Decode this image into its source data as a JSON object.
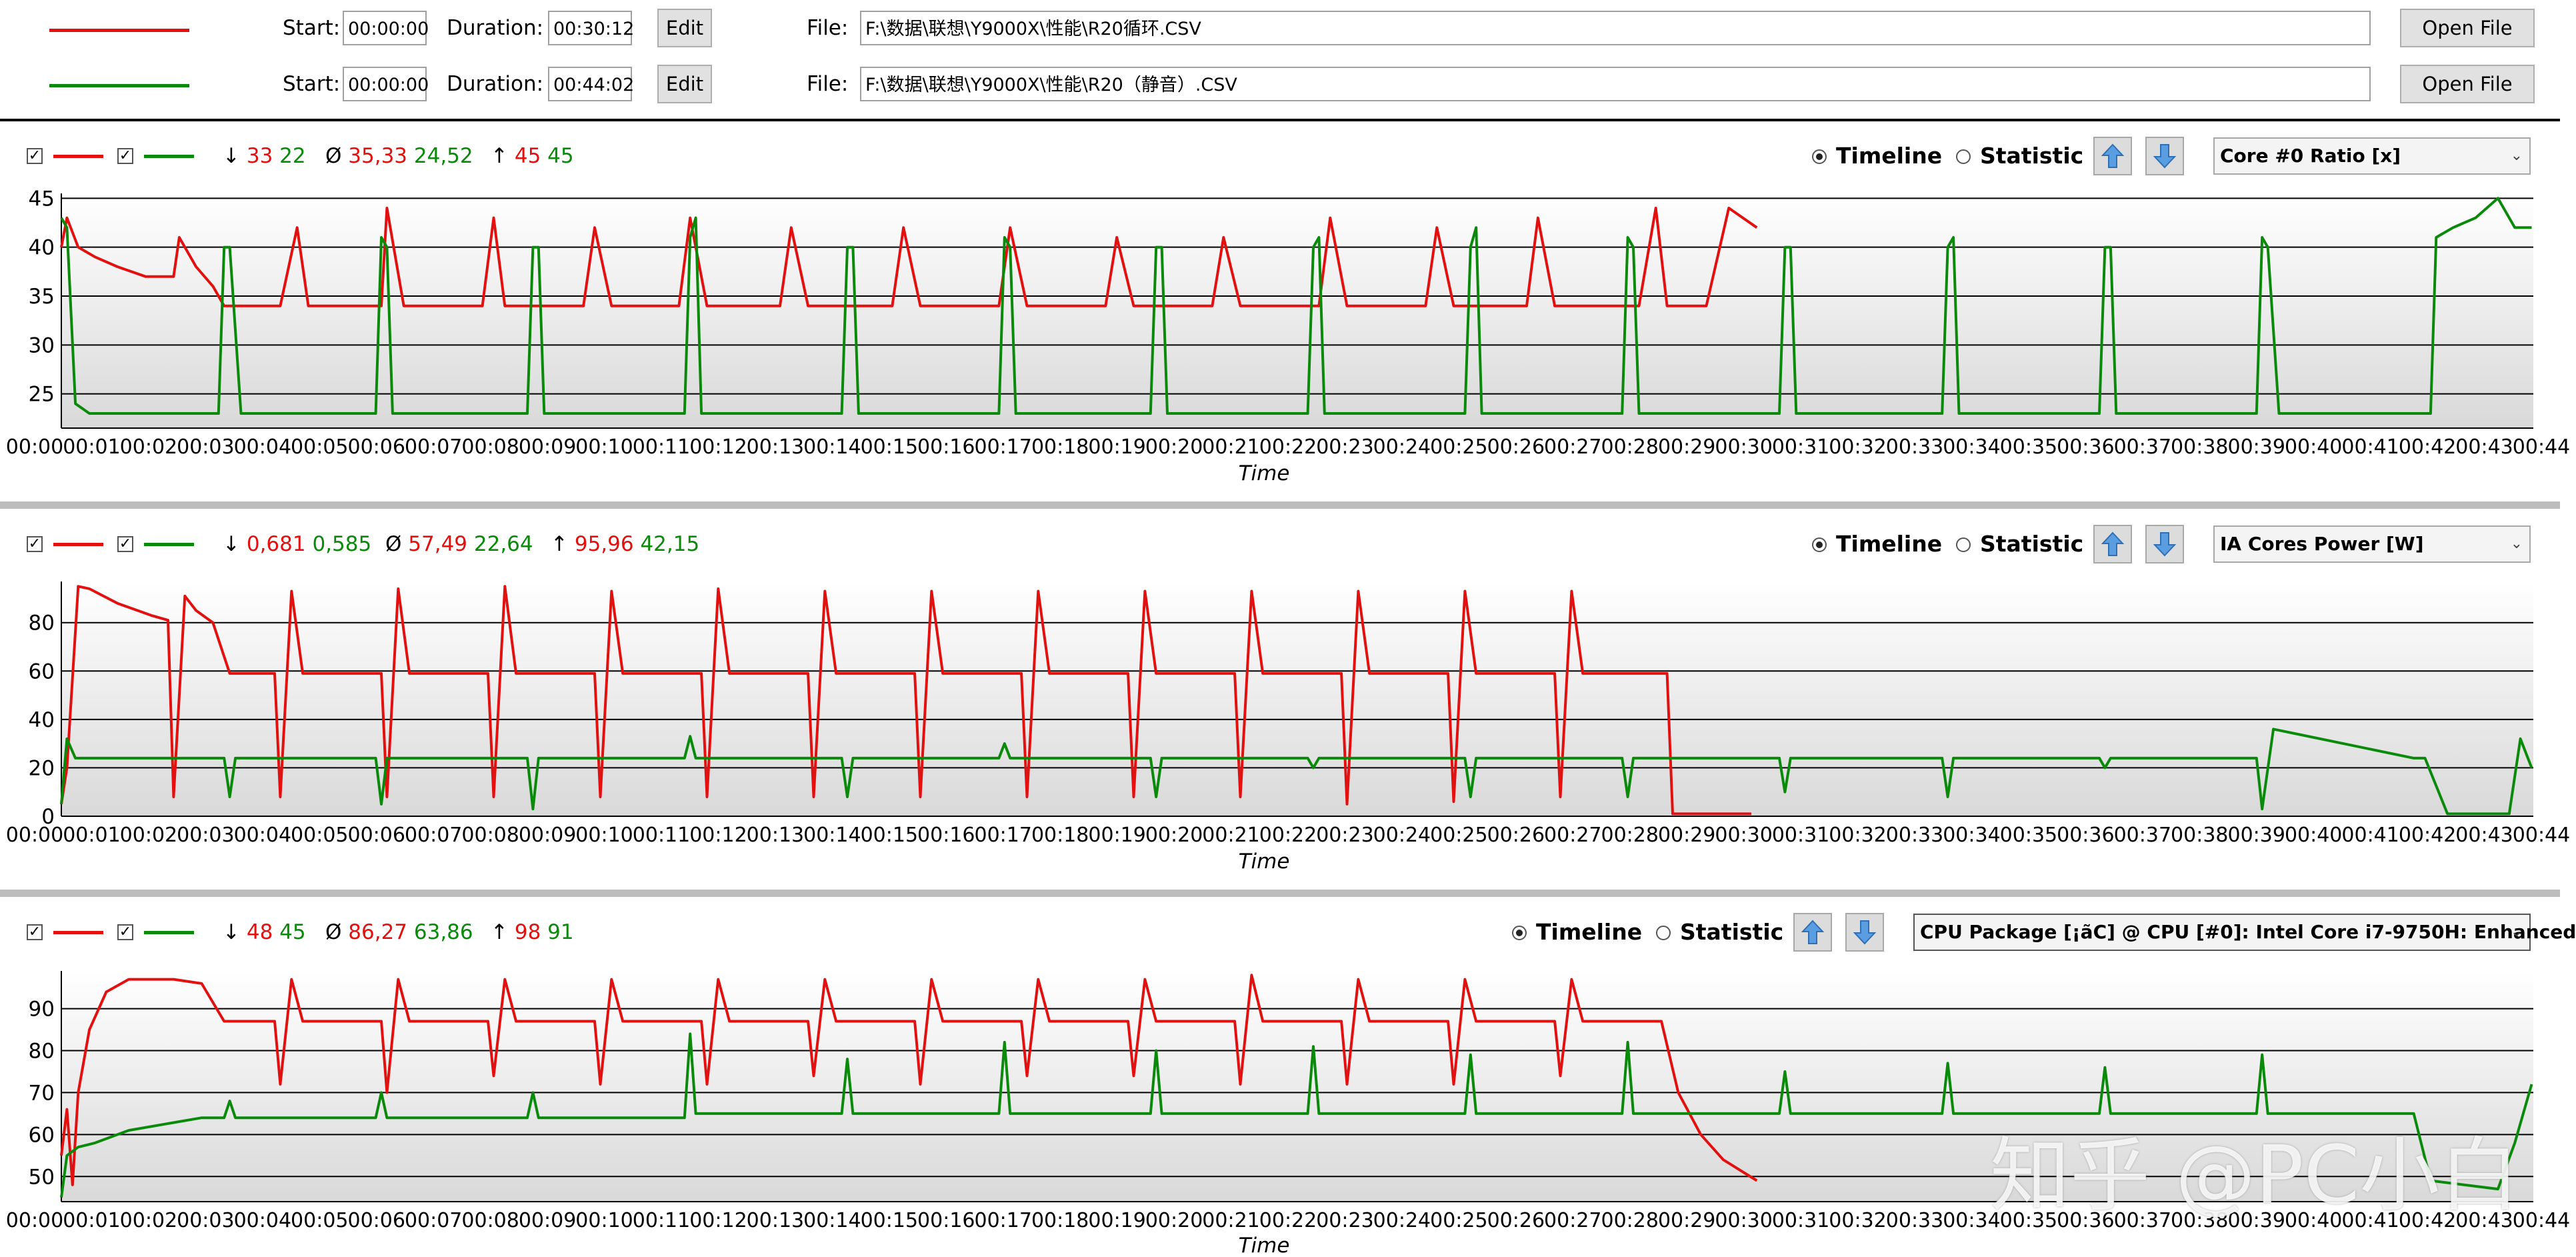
{
  "colors": {
    "series1": "#e31010",
    "series2": "#0a8a0a"
  },
  "files": [
    {
      "start_label": "Start:",
      "start": "00:00:00",
      "duration_label": "Duration:",
      "duration": "00:30:12",
      "edit_label": "Edit",
      "file_label": "File:",
      "path": "F:\\数据\\联想\\Y9000X\\性能\\R20循环.CSV",
      "open_label": "Open File"
    },
    {
      "start_label": "Start:",
      "start": "00:00:00",
      "duration_label": "Duration:",
      "duration": "00:44:02",
      "edit_label": "Edit",
      "file_label": "File:",
      "path": "F:\\数据\\联想\\Y9000X\\性能\\R20（静音）.CSV",
      "open_label": "Open File"
    }
  ],
  "mode_timeline": "Timeline",
  "mode_statistic": "Statistic",
  "x_time_label": "Time",
  "panels": [
    {
      "min_icon": "↓",
      "avg_icon": "Ø",
      "max_icon": "↑",
      "min": [
        "33",
        "22"
      ],
      "avg": [
        "35,33",
        "24,52"
      ],
      "max": [
        "45",
        "45"
      ],
      "sensor": "Core #0 Ratio [x]"
    },
    {
      "min_icon": "↓",
      "avg_icon": "Ø",
      "max_icon": "↑",
      "min": [
        "0,681",
        "0,585"
      ],
      "avg": [
        "57,49",
        "22,64"
      ],
      "max": [
        "95,96",
        "42,15"
      ],
      "sensor": "IA Cores Power [W]"
    },
    {
      "min_icon": "↓",
      "avg_icon": "Ø",
      "max_icon": "↑",
      "min": [
        "48",
        "45"
      ],
      "avg": [
        "86,27",
        "63,86"
      ],
      "max": [
        "98",
        "91"
      ],
      "sensor": "CPU Package [¡ãC] @ CPU [#0]: Intel Core i7-9750H: Enhanced"
    }
  ],
  "watermark": "知乎 @PC小白",
  "chart_data": [
    {
      "type": "line",
      "title": "Core #0 Ratio [x]",
      "xlabel": "Time",
      "ylabel": "",
      "x_ticks": [
        "00:00",
        "00:01",
        "00:02",
        "00:03",
        "00:04",
        "00:05",
        "00:06",
        "00:07",
        "00:08",
        "00:09",
        "00:10",
        "00:11",
        "00:12",
        "00:13",
        "00:14",
        "00:15",
        "00:16",
        "00:17",
        "00:18",
        "00:19",
        "00:20",
        "00:21",
        "00:22",
        "00:23",
        "00:24",
        "00:25",
        "00:26",
        "00:27",
        "00:28",
        "00:29",
        "00:30",
        "00:31",
        "00:32",
        "00:33",
        "00:34",
        "00:35",
        "00:36",
        "00:37",
        "00:38",
        "00:39",
        "00:40",
        "00:41",
        "00:42",
        "00:43",
        "00:44"
      ],
      "y_ticks": [
        25,
        30,
        35,
        40,
        45
      ],
      "ylim": [
        21.5,
        45.5
      ],
      "xlim_minutes": [
        0,
        44.03
      ],
      "grid": true,
      "series": [
        {
          "color": "red",
          "x": [
            0,
            0.1,
            0.3,
            0.6,
            1.0,
            1.5,
            2.0,
            2.1,
            2.4,
            2.7,
            2.9,
            3.5,
            3.9,
            4.2,
            4.4,
            5.4,
            5.7,
            5.8,
            6.1,
            7.1,
            7.5,
            7.7,
            7.9,
            8.7,
            9.3,
            9.5,
            9.8,
            10.6,
            11.0,
            11.2,
            11.5,
            12.4,
            12.8,
            13.0,
            13.3,
            14.3,
            14.8,
            15.0,
            15.3,
            16.3,
            16.7,
            16.9,
            17.2,
            18.2,
            18.6,
            18.8,
            19.1,
            20.1,
            20.5,
            20.7,
            21.0,
            22.0,
            22.4,
            22.6,
            22.9,
            23.9,
            24.3,
            24.5,
            24.8,
            25.8,
            26.1,
            26.3,
            26.6,
            27.6,
            28.1,
            28.4,
            28.6,
            29.0,
            29.3,
            29.7,
            30.2
          ],
          "y": [
            40,
            43,
            40,
            39,
            38,
            37,
            37,
            41,
            38,
            36,
            34,
            34,
            34,
            42,
            34,
            34,
            34,
            44,
            34,
            34,
            34,
            43,
            34,
            34,
            34,
            42,
            34,
            34,
            34,
            43,
            34,
            34,
            34,
            42,
            34,
            34,
            34,
            42,
            34,
            34,
            34,
            42,
            34,
            34,
            34,
            41,
            34,
            34,
            34,
            41,
            34,
            34,
            34,
            43,
            34,
            34,
            34,
            42,
            34,
            34,
            34,
            43,
            34,
            34,
            34,
            44,
            34,
            34,
            34,
            44,
            42
          ]
        },
        {
          "color": "green",
          "x": [
            0,
            0.1,
            0.25,
            0.5,
            2.8,
            2.9,
            3.0,
            3.2,
            5.6,
            5.7,
            5.8,
            5.9,
            8.3,
            8.4,
            8.5,
            8.6,
            11.1,
            11.2,
            11.3,
            11.4,
            13.9,
            14.0,
            14.1,
            14.2,
            16.7,
            16.8,
            16.9,
            17.0,
            19.4,
            19.5,
            19.6,
            19.7,
            22.2,
            22.3,
            22.4,
            22.5,
            25.0,
            25.1,
            25.2,
            25.3,
            27.8,
            27.9,
            28.0,
            28.1,
            30.6,
            30.7,
            30.8,
            30.9,
            33.5,
            33.6,
            33.7,
            33.8,
            36.3,
            36.4,
            36.5,
            36.6,
            39.1,
            39.2,
            39.3,
            39.5,
            42.2,
            42.3,
            42.6,
            43.0,
            43.4,
            43.7,
            44.0
          ],
          "y": [
            43,
            42,
            24,
            23,
            23,
            40,
            40,
            23,
            23,
            41,
            40,
            23,
            23,
            40,
            40,
            23,
            23,
            41,
            43,
            23,
            23,
            40,
            40,
            23,
            23,
            41,
            40,
            23,
            23,
            40,
            40,
            23,
            23,
            40,
            41,
            23,
            23,
            40,
            42,
            23,
            23,
            41,
            40,
            23,
            23,
            40,
            40,
            23,
            23,
            40,
            41,
            23,
            23,
            40,
            40,
            23,
            23,
            41,
            40,
            23,
            23,
            41,
            42,
            43,
            45,
            42,
            42
          ]
        }
      ]
    },
    {
      "type": "line",
      "title": "IA Cores Power [W]",
      "xlabel": "Time",
      "ylabel": "",
      "x_ticks": [
        "00:00",
        "00:01",
        "00:02",
        "00:03",
        "00:04",
        "00:05",
        "00:06",
        "00:07",
        "00:08",
        "00:09",
        "00:10",
        "00:11",
        "00:12",
        "00:13",
        "00:14",
        "00:15",
        "00:16",
        "00:17",
        "00:18",
        "00:19",
        "00:20",
        "00:21",
        "00:22",
        "00:23",
        "00:24",
        "00:25",
        "00:26",
        "00:27",
        "00:28",
        "00:29",
        "00:30",
        "00:31",
        "00:32",
        "00:33",
        "00:34",
        "00:35",
        "00:36",
        "00:37",
        "00:38",
        "00:39",
        "00:40",
        "00:41",
        "00:42",
        "00:43",
        "00:44"
      ],
      "y_ticks": [
        0,
        20,
        40,
        60,
        80
      ],
      "ylim": [
        0,
        97
      ],
      "xlim_minutes": [
        0,
        44.03
      ],
      "grid": true,
      "series": [
        {
          "color": "red",
          "x": [
            0,
            0.1,
            0.3,
            0.5,
            1.0,
            1.6,
            1.9,
            2.0,
            2.2,
            2.4,
            2.7,
            3.0,
            3.8,
            3.9,
            4.1,
            4.3,
            5.7,
            5.8,
            6.0,
            6.2,
            7.6,
            7.7,
            7.9,
            8.1,
            9.5,
            9.6,
            9.8,
            10.0,
            11.4,
            11.5,
            11.7,
            11.9,
            13.3,
            13.4,
            13.6,
            13.8,
            15.2,
            15.3,
            15.5,
            15.7,
            17.1,
            17.2,
            17.4,
            17.6,
            19.0,
            19.1,
            19.3,
            19.5,
            20.9,
            21.0,
            21.2,
            21.4,
            22.8,
            22.9,
            23.1,
            23.3,
            24.7,
            24.8,
            25.0,
            25.2,
            26.6,
            26.7,
            26.9,
            27.1,
            28.4,
            28.6,
            28.7,
            30.1
          ],
          "y": [
            5,
            20,
            95,
            94,
            88,
            83,
            81,
            8,
            91,
            85,
            80,
            59,
            59,
            8,
            93,
            59,
            59,
            8,
            94,
            59,
            59,
            8,
            95,
            59,
            59,
            8,
            93,
            59,
            59,
            8,
            94,
            59,
            59,
            8,
            93,
            59,
            59,
            8,
            93,
            59,
            59,
            8,
            93,
            59,
            59,
            8,
            93,
            59,
            59,
            8,
            93,
            59,
            59,
            5,
            93,
            59,
            59,
            6,
            93,
            59,
            59,
            8,
            93,
            59,
            59,
            59,
            1,
            1
          ]
        },
        {
          "color": "green",
          "x": [
            0,
            0.1,
            0.25,
            0.4,
            2.9,
            3.0,
            3.1,
            5.6,
            5.7,
            5.8,
            8.3,
            8.4,
            8.5,
            11.1,
            11.2,
            11.3,
            13.9,
            14.0,
            14.1,
            16.7,
            16.8,
            16.9,
            19.4,
            19.5,
            19.6,
            22.2,
            22.3,
            22.4,
            25.0,
            25.1,
            25.2,
            27.8,
            27.9,
            28.0,
            30.6,
            30.7,
            30.8,
            33.5,
            33.6,
            33.7,
            36.3,
            36.4,
            36.5,
            39.1,
            39.2,
            39.4,
            41.9,
            42.1,
            42.5,
            43.6,
            43.8,
            44.0
          ],
          "y": [
            5,
            32,
            24,
            24,
            24,
            8,
            24,
            24,
            5,
            24,
            24,
            3,
            24,
            24,
            33,
            24,
            24,
            8,
            24,
            24,
            30,
            24,
            24,
            8,
            24,
            24,
            20,
            24,
            24,
            8,
            24,
            24,
            8,
            24,
            24,
            10,
            24,
            24,
            8,
            24,
            24,
            20,
            24,
            24,
            3,
            36,
            24,
            24,
            1,
            1,
            32,
            20
          ]
        }
      ]
    },
    {
      "type": "line",
      "title": "CPU Package [¡ãC] @ CPU [#0]: Intel Core i7-9750H: Enhanced",
      "xlabel": "Time",
      "ylabel": "",
      "x_ticks": [
        "00:00",
        "00:01",
        "00:02",
        "00:03",
        "00:04",
        "00:05",
        "00:06",
        "00:07",
        "00:08",
        "00:09",
        "00:10",
        "00:11",
        "00:12",
        "00:13",
        "00:14",
        "00:15",
        "00:16",
        "00:17",
        "00:18",
        "00:19",
        "00:20",
        "00:21",
        "00:22",
        "00:23",
        "00:24",
        "00:25",
        "00:26",
        "00:27",
        "00:28",
        "00:29",
        "00:30",
        "00:31",
        "00:32",
        "00:33",
        "00:34",
        "00:35",
        "00:36",
        "00:37",
        "00:38",
        "00:39",
        "00:40",
        "00:41",
        "00:42",
        "00:43",
        "00:44"
      ],
      "y_ticks": [
        50,
        60,
        70,
        80,
        90
      ],
      "ylim": [
        44,
        99
      ],
      "xlim_minutes": [
        0,
        44.03
      ],
      "grid": true,
      "series": [
        {
          "color": "red",
          "x": [
            0,
            0.1,
            0.2,
            0.3,
            0.5,
            0.8,
            1.2,
            2.0,
            2.5,
            2.9,
            3.8,
            3.9,
            4.1,
            4.3,
            5.7,
            5.8,
            6.0,
            6.2,
            7.6,
            7.7,
            7.9,
            8.1,
            9.5,
            9.6,
            9.8,
            10.0,
            11.4,
            11.5,
            11.7,
            11.9,
            13.3,
            13.4,
            13.6,
            13.8,
            15.2,
            15.3,
            15.5,
            15.7,
            17.1,
            17.2,
            17.4,
            17.6,
            19.0,
            19.1,
            19.3,
            19.5,
            20.9,
            21.0,
            21.2,
            21.4,
            22.8,
            22.9,
            23.1,
            23.3,
            24.7,
            24.8,
            25.0,
            25.2,
            26.6,
            26.7,
            26.9,
            27.1,
            28.4,
            28.5,
            28.8,
            29.2,
            29.6,
            30.2
          ],
          "y": [
            55,
            66,
            48,
            70,
            85,
            94,
            97,
            97,
            96,
            87,
            87,
            72,
            97,
            87,
            87,
            70,
            97,
            87,
            87,
            74,
            97,
            87,
            87,
            72,
            97,
            87,
            87,
            72,
            97,
            87,
            87,
            74,
            97,
            87,
            87,
            72,
            97,
            87,
            87,
            74,
            97,
            87,
            87,
            74,
            97,
            87,
            87,
            72,
            98,
            87,
            87,
            72,
            97,
            87,
            87,
            72,
            97,
            87,
            87,
            74,
            97,
            87,
            87,
            87,
            70,
            60,
            54,
            49
          ]
        },
        {
          "color": "green",
          "x": [
            0,
            0.1,
            0.3,
            0.6,
            1.2,
            2.5,
            2.9,
            3.0,
            3.1,
            3.3,
            5.6,
            5.7,
            5.8,
            8.3,
            8.4,
            8.5,
            11.1,
            11.2,
            11.3,
            13.9,
            14.0,
            14.1,
            16.7,
            16.8,
            16.9,
            19.4,
            19.5,
            19.6,
            22.2,
            22.3,
            22.4,
            25.0,
            25.1,
            25.2,
            27.8,
            27.9,
            28.0,
            30.6,
            30.7,
            30.8,
            33.5,
            33.6,
            33.7,
            36.3,
            36.4,
            36.5,
            39.1,
            39.2,
            39.3,
            41.9,
            42.2,
            43.4,
            43.7,
            44.0
          ],
          "y": [
            45,
            55,
            57,
            58,
            61,
            64,
            64,
            68,
            64,
            64,
            64,
            70,
            64,
            64,
            70,
            64,
            64,
            84,
            65,
            65,
            78,
            65,
            65,
            82,
            65,
            65,
            80,
            65,
            65,
            81,
            65,
            65,
            79,
            65,
            65,
            82,
            65,
            65,
            75,
            65,
            65,
            77,
            65,
            65,
            76,
            65,
            65,
            79,
            65,
            65,
            49,
            47,
            58,
            72
          ]
        }
      ]
    }
  ]
}
